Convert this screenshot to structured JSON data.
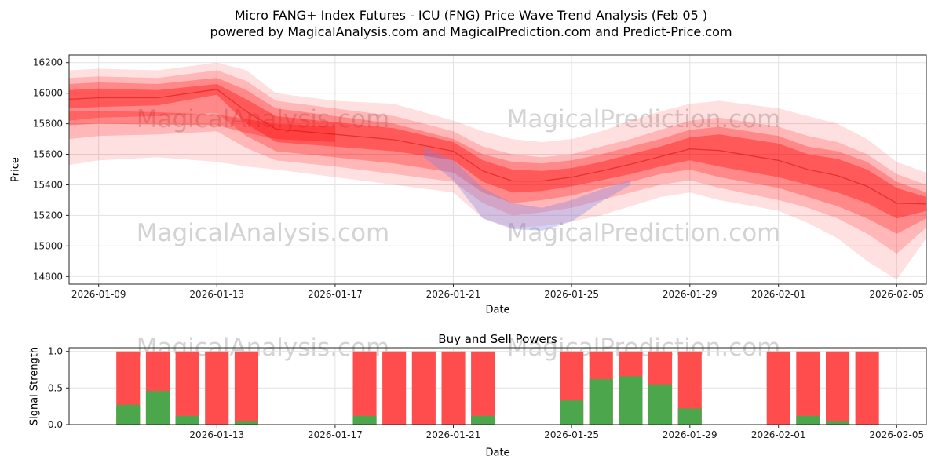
{
  "title": {
    "line1": "Micro FANG+ Index Futures - ICU (FNG) Price Wave Trend Analysis (Feb 05 )",
    "line2": "powered by MagicalAnalysis.com and MagicalPrediction.com and Predict-Price.com"
  },
  "watermarks": {
    "analysis": "MagicalAnalysis.com",
    "prediction": "MagicalPrediction.com"
  },
  "price_chart": {
    "ylabel": "Price",
    "xlabel": "Date",
    "y_ticks": [
      16200,
      16000,
      15800,
      15600,
      15400,
      15200,
      15000,
      14800
    ],
    "x_ticks": [
      "2026-01-09",
      "2026-01-13",
      "2026-01-17",
      "2026-01-21",
      "2026-01-25",
      "2026-01-29",
      "2026-02-01",
      "2026-02-05"
    ]
  },
  "signal_chart": {
    "title": "Buy and Sell Powers",
    "ylabel": "Signal Strength",
    "xlabel": "Date",
    "y_ticks": [
      "0.0",
      "0.5",
      "1.0"
    ],
    "x_ticks": [
      "2026-01-13",
      "2026-01-17",
      "2026-01-21",
      "2026-01-25",
      "2026-01-29",
      "2026-02-01",
      "2026-02-05"
    ]
  },
  "colors": {
    "grid": "#e2e2e2",
    "axis": "#262626",
    "text": "#1a1a1a",
    "median": "#cc0000",
    "background": "#ffffff"
  },
  "chart_data": [
    {
      "type": "area",
      "x_base_date": "2026-01-08",
      "x_unit": "days_since_base",
      "x_domain": [
        0,
        29
      ],
      "ylim": [
        14750,
        16250
      ],
      "grid": true,
      "bands": [
        {
          "name": "outer",
          "color": "#ff0000",
          "opacity": 0.12,
          "x": [
            0,
            1,
            3,
            5,
            6,
            7,
            9,
            11,
            13,
            14,
            15,
            16,
            17,
            18,
            19,
            20,
            21,
            22,
            24,
            25,
            26,
            27,
            28,
            29
          ],
          "hi": [
            16150,
            16160,
            16150,
            16200,
            16150,
            16000,
            15950,
            15930,
            15820,
            15750,
            15700,
            15680,
            15700,
            15750,
            15820,
            15880,
            15930,
            15950,
            15900,
            15850,
            15800,
            15700,
            15550,
            15480
          ],
          "lo": [
            15530,
            15560,
            15580,
            15550,
            15520,
            15500,
            15450,
            15400,
            15350,
            15180,
            15120,
            15130,
            15160,
            15200,
            15260,
            15320,
            15350,
            15300,
            15230,
            15150,
            15050,
            14900,
            14780,
            15050
          ]
        },
        {
          "name": "mid-outer",
          "color": "#ff0000",
          "opacity": 0.18,
          "x": [
            0,
            1,
            3,
            5,
            6,
            7,
            9,
            11,
            13,
            14,
            15,
            16,
            17,
            18,
            19,
            20,
            21,
            22,
            24,
            25,
            26,
            27,
            28,
            29
          ],
          "hi": [
            16100,
            16110,
            16100,
            16150,
            16080,
            15950,
            15900,
            15850,
            15750,
            15650,
            15600,
            15580,
            15600,
            15650,
            15700,
            15760,
            15820,
            15840,
            15780,
            15720,
            15680,
            15600,
            15470,
            15400
          ],
          "lo": [
            15700,
            15720,
            15730,
            15750,
            15640,
            15560,
            15520,
            15470,
            15420,
            15280,
            15200,
            15220,
            15250,
            15300,
            15350,
            15400,
            15430,
            15380,
            15300,
            15250,
            15180,
            15080,
            14950,
            15120
          ]
        },
        {
          "name": "mid-inner",
          "color": "#ff0000",
          "opacity": 0.25,
          "x": [
            0,
            1,
            3,
            5,
            6,
            7,
            9,
            11,
            13,
            14,
            15,
            16,
            17,
            18,
            19,
            20,
            21,
            22,
            24,
            25,
            26,
            27,
            28,
            29
          ],
          "hi": [
            16060,
            16070,
            16060,
            16100,
            16020,
            15900,
            15850,
            15800,
            15700,
            15600,
            15550,
            15540,
            15560,
            15600,
            15650,
            15700,
            15760,
            15780,
            15720,
            15650,
            15620,
            15550,
            15420,
            15350
          ],
          "lo": [
            15820,
            15840,
            15850,
            15870,
            15720,
            15620,
            15580,
            15540,
            15480,
            15350,
            15280,
            15300,
            15330,
            15380,
            15420,
            15470,
            15500,
            15450,
            15380,
            15320,
            15260,
            15180,
            15080,
            15180
          ]
        },
        {
          "name": "core",
          "color": "#ff0000",
          "opacity": 0.35,
          "x": [
            0,
            1,
            3,
            5,
            6,
            7,
            9,
            11,
            13,
            14,
            15,
            16,
            17,
            18,
            19,
            20,
            21,
            22,
            24,
            25,
            26,
            27,
            28,
            29
          ],
          "hi": [
            16020,
            16030,
            16020,
            16060,
            15960,
            15850,
            15810,
            15770,
            15680,
            15560,
            15500,
            15490,
            15510,
            15550,
            15600,
            15650,
            15710,
            15730,
            15670,
            15600,
            15570,
            15500,
            15380,
            15320
          ],
          "lo": [
            15900,
            15910,
            15920,
            15990,
            15800,
            15680,
            15650,
            15620,
            15560,
            15420,
            15350,
            15360,
            15390,
            15430,
            15470,
            15520,
            15560,
            15520,
            15450,
            15400,
            15350,
            15280,
            15180,
            15230
          ]
        },
        {
          "name": "left-streak",
          "color": "#ff0000",
          "opacity": 0.28,
          "x": [
            0,
            1,
            3,
            5,
            6,
            7,
            9
          ],
          "hi": [
            15880,
            15885,
            15875,
            15860,
            15830,
            15800,
            15780
          ],
          "lo": [
            15790,
            15800,
            15795,
            15790,
            15740,
            15700,
            15680
          ]
        },
        {
          "name": "dip-band-blue",
          "color": "#8080e0",
          "opacity": 0.35,
          "x": [
            12,
            13,
            14,
            15,
            16,
            17,
            18,
            19
          ],
          "hi": [
            15650,
            15560,
            15380,
            15280,
            15250,
            15300,
            15370,
            15430
          ],
          "lo": [
            15580,
            15430,
            15180,
            15110,
            15100,
            15160,
            15290,
            15400
          ]
        }
      ],
      "median": {
        "x": [
          0,
          1,
          3,
          5,
          6,
          7,
          9,
          11,
          13,
          14,
          15,
          16,
          17,
          18,
          19,
          20,
          21,
          22,
          24,
          25,
          26,
          27,
          28,
          29
        ],
        "values": [
          15960,
          15970,
          15970,
          16025,
          15880,
          15765,
          15730,
          15695,
          15620,
          15490,
          15425,
          15425,
          15450,
          15490,
          15535,
          15585,
          15635,
          15625,
          15560,
          15500,
          15460,
          15390,
          15280,
          15275
        ]
      }
    },
    {
      "type": "bar",
      "title": "Buy and Sell Powers",
      "xlabel": "Date",
      "ylabel": "Signal Strength",
      "ylim": [
        0,
        1.05
      ],
      "sell_color": "#ff4c4c",
      "buy_color": "#4ca64c",
      "bar_width_days": 0.8,
      "bars": [
        {
          "date": "2026-01-10",
          "sell": 1.0,
          "buy": 0.27
        },
        {
          "date": "2026-01-11",
          "sell": 1.0,
          "buy": 0.46
        },
        {
          "date": "2026-01-12",
          "sell": 1.0,
          "buy": 0.12
        },
        {
          "date": "2026-01-13",
          "sell": 1.0,
          "buy": 0.0
        },
        {
          "date": "2026-01-14",
          "sell": 1.0,
          "buy": 0.05
        },
        {
          "date": "2026-01-18",
          "sell": 1.0,
          "buy": 0.12
        },
        {
          "date": "2026-01-19",
          "sell": 1.0,
          "buy": 0.0
        },
        {
          "date": "2026-01-20",
          "sell": 1.0,
          "buy": 0.0
        },
        {
          "date": "2026-01-21",
          "sell": 1.0,
          "buy": 0.0
        },
        {
          "date": "2026-01-22",
          "sell": 1.0,
          "buy": 0.12
        },
        {
          "date": "2026-01-25",
          "sell": 1.0,
          "buy": 0.33
        },
        {
          "date": "2026-01-26",
          "sell": 1.0,
          "buy": 0.62
        },
        {
          "date": "2026-01-27",
          "sell": 1.0,
          "buy": 0.66
        },
        {
          "date": "2026-01-28",
          "sell": 1.0,
          "buy": 0.55
        },
        {
          "date": "2026-01-29",
          "sell": 1.0,
          "buy": 0.22
        },
        {
          "date": "2026-02-01",
          "sell": 1.0,
          "buy": 0.0
        },
        {
          "date": "2026-02-02",
          "sell": 1.0,
          "buy": 0.12
        },
        {
          "date": "2026-02-03",
          "sell": 1.0,
          "buy": 0.05
        },
        {
          "date": "2026-02-04",
          "sell": 1.0,
          "buy": 0.0
        }
      ]
    }
  ]
}
